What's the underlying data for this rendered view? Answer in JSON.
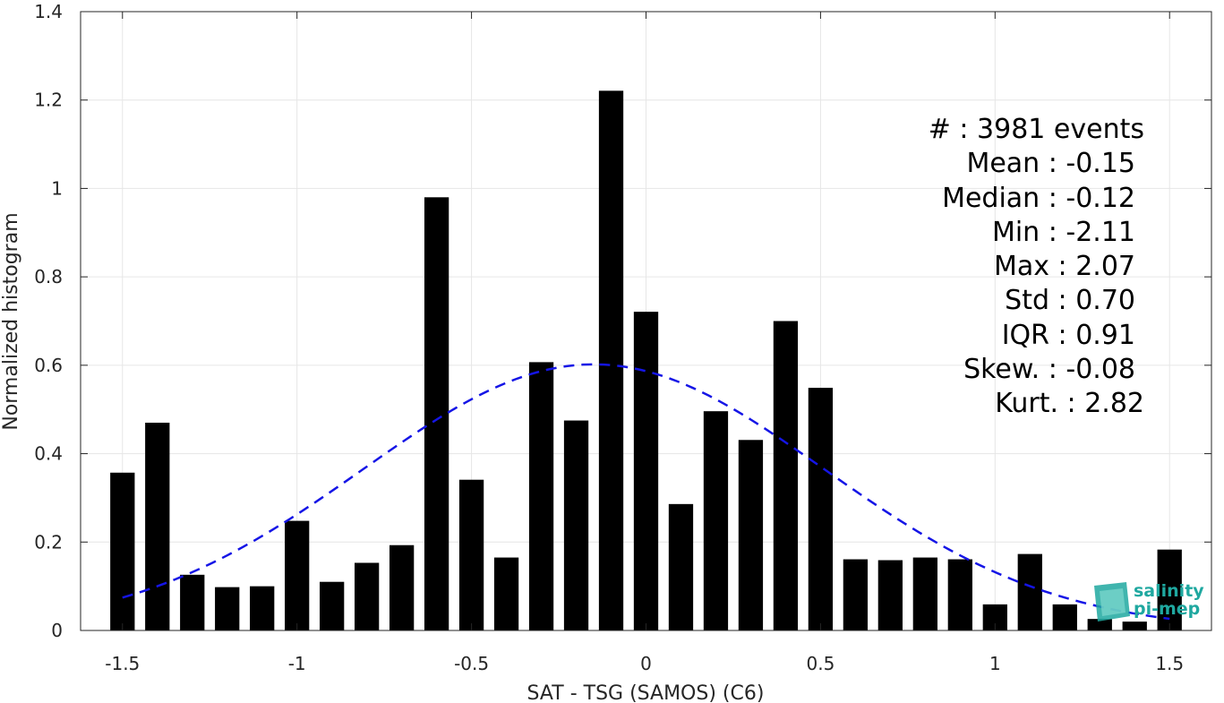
{
  "chart_data": {
    "type": "bar",
    "xlabel": "SAT - TSG (SAMOS) (C6)",
    "ylabel": "Normalized histogram",
    "xlim": [
      -1.62,
      1.62
    ],
    "ylim": [
      0,
      1.4
    ],
    "xticks": [
      "-1.5",
      "-1",
      "-0.5",
      "0",
      "0.5",
      "1",
      "1.5"
    ],
    "xtick_values": [
      -1.5,
      -1,
      -0.5,
      0,
      0.5,
      1,
      1.5
    ],
    "yticks": [
      "0",
      "0.2",
      "0.4",
      "0.6",
      "0.8",
      "1",
      "1.2",
      "1.4"
    ],
    "ytick_values": [
      0,
      0.2,
      0.4,
      0.6,
      0.8,
      1,
      1.2,
      1.4
    ],
    "grid": true,
    "bin_width": 0.1,
    "bar_color": "#000000",
    "bins": [
      {
        "x": -1.5,
        "y": 0.357
      },
      {
        "x": -1.4,
        "y": 0.47
      },
      {
        "x": -1.3,
        "y": 0.126
      },
      {
        "x": -1.2,
        "y": 0.098
      },
      {
        "x": -1.1,
        "y": 0.1
      },
      {
        "x": -1.0,
        "y": 0.248
      },
      {
        "x": -0.9,
        "y": 0.11
      },
      {
        "x": -0.8,
        "y": 0.153
      },
      {
        "x": -0.7,
        "y": 0.193
      },
      {
        "x": -0.6,
        "y": 0.98
      },
      {
        "x": -0.5,
        "y": 0.341
      },
      {
        "x": -0.4,
        "y": 0.165
      },
      {
        "x": -0.3,
        "y": 0.607
      },
      {
        "x": -0.2,
        "y": 0.475
      },
      {
        "x": -0.1,
        "y": 1.221
      },
      {
        "x": 0.0,
        "y": 0.721
      },
      {
        "x": 0.1,
        "y": 0.286
      },
      {
        "x": 0.2,
        "y": 0.496
      },
      {
        "x": 0.3,
        "y": 0.431
      },
      {
        "x": 0.4,
        "y": 0.7
      },
      {
        "x": 0.5,
        "y": 0.549
      },
      {
        "x": 0.6,
        "y": 0.161
      },
      {
        "x": 0.7,
        "y": 0.159
      },
      {
        "x": 0.8,
        "y": 0.165
      },
      {
        "x": 0.9,
        "y": 0.161
      },
      {
        "x": 1.0,
        "y": 0.059
      },
      {
        "x": 1.1,
        "y": 0.173
      },
      {
        "x": 1.2,
        "y": 0.059
      },
      {
        "x": 1.3,
        "y": 0.026
      },
      {
        "x": 1.4,
        "y": 0.02
      },
      {
        "x": 1.5,
        "y": 0.183
      }
    ],
    "fit_curve": {
      "style": "dashed",
      "color": "#1515e6",
      "mean": -0.15,
      "std": 0.66,
      "peak": 0.602,
      "x_range": [
        -1.5,
        1.5
      ]
    }
  },
  "stats": [
    {
      "label": "#  : 3981 events"
    },
    {
      "label": "Mean : -0.15"
    },
    {
      "label": "Median : -0.12"
    },
    {
      "label": "Min : -2.11"
    },
    {
      "label": "Max : 2.07"
    },
    {
      "label": "Std : 0.70"
    },
    {
      "label": "IQR : 0.91"
    },
    {
      "label": "Skew. : -0.08"
    },
    {
      "label": "Kurt. : 2.82"
    }
  ],
  "logo": {
    "line1": "salinity",
    "line2": "pi-mep",
    "color": "#1fa8a0"
  }
}
